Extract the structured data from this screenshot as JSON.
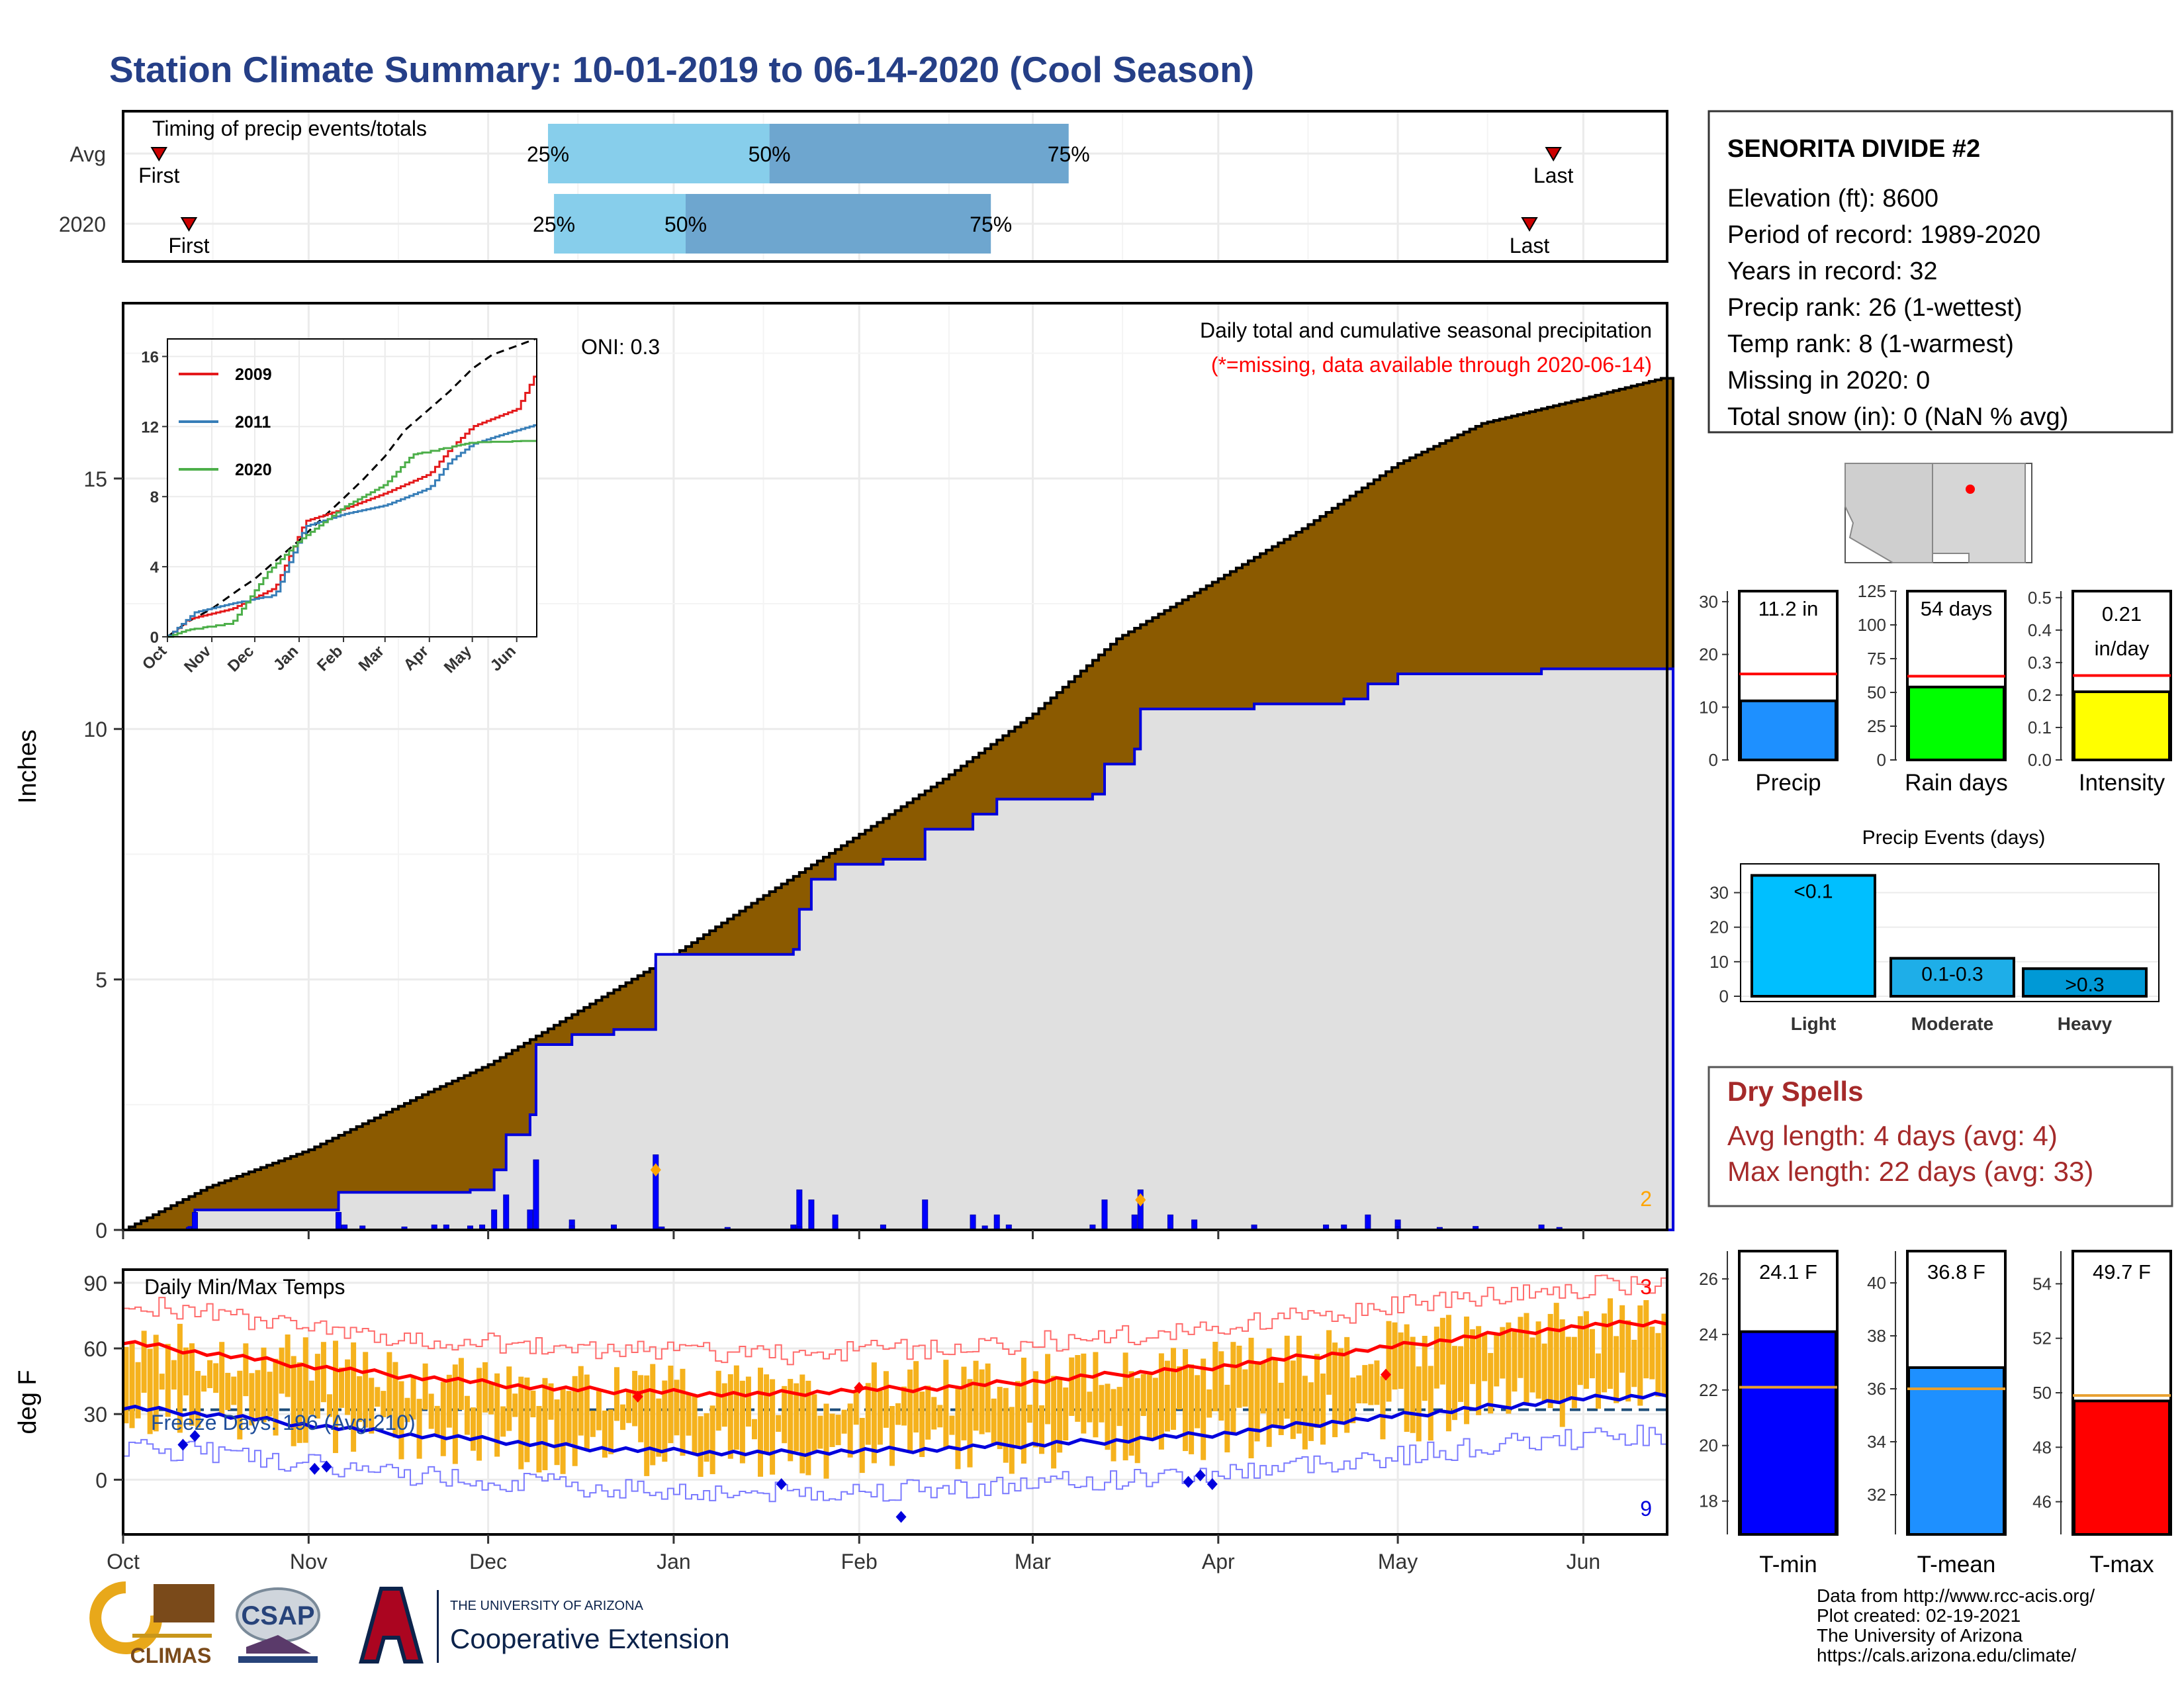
{
  "title": "Station Climate Summary: 10-01-2019 to 06-14-2020 (Cool Season)",
  "colors": {
    "title": "#253f87",
    "brown": "#8b5a00",
    "season_fill": "#e0e0e0",
    "blue_line": "#0000dd",
    "q_light": "#87ceeb",
    "q_dark": "#6ea6cf",
    "temp_bar": "#f5b21d",
    "dry_red": "#a52a2a",
    "red": "#ff0000",
    "orange": "#ffa500"
  },
  "months": [
    "Oct",
    "Nov",
    "Dec",
    "Jan",
    "Feb",
    "Mar",
    "Apr",
    "May",
    "Jun"
  ],
  "timing": {
    "title": "Timing of precip events/totals",
    "rows": [
      {
        "label": "Avg",
        "first": "First",
        "last": "Last",
        "first_date": "2019-10-07",
        "last_date": "2020-05-27",
        "p25": "2019-12-11",
        "p50": "2020-01-17",
        "p75": "2020-03-07",
        "pct25": "25%",
        "pct50": "50%",
        "pct75": "75%"
      },
      {
        "label": "2020",
        "first": "First",
        "last": "Last",
        "first_date": "2019-10-12",
        "last_date": "2020-05-23",
        "p25": "2019-12-12",
        "p50": "2020-01-03",
        "p75": "2020-02-23",
        "pct25": "25%",
        "pct50": "50%",
        "pct75": "75%"
      }
    ]
  },
  "precip": {
    "ylabel": "Inches",
    "subtitle": "Daily total and cumulative seasonal precipitation",
    "missing_note": "(*=missing, data available through 2020-06-14)",
    "oni": "ONI: 0.3",
    "corner_count": "2",
    "yticks": [
      0,
      5,
      10,
      15
    ]
  },
  "inset": {
    "yticks": [
      0,
      4,
      8,
      12,
      16
    ],
    "xticks": [
      "Oct",
      "Nov",
      "Dec",
      "Jan",
      "Feb",
      "Mar",
      "Apr",
      "May",
      "Jun"
    ],
    "legend": [
      {
        "name": "2009",
        "color": "#e41a1c"
      },
      {
        "name": "2011",
        "color": "#377eb8"
      },
      {
        "name": "2020",
        "color": "#4daf4a"
      }
    ]
  },
  "temps": {
    "ylabel": "deg F",
    "title": "Daily Min/Max Temps",
    "freeze_text": "Freeze Days: 196 (Avg:210)",
    "count_hot": "3",
    "count_cold": "9",
    "yticks": [
      0,
      30,
      60,
      90
    ]
  },
  "station": {
    "name": "SENORITA DIVIDE #2",
    "lines": [
      "Elevation (ft): 8600",
      "Period of record: 1989-2020",
      "Years in record: 32",
      "Precip rank: 26 (1-wettest)",
      "Temp rank: 8 (1-warmest)",
      "Missing in 2020: 0",
      "Total snow (in): 0 (NaN % avg)"
    ]
  },
  "summary_bars": [
    {
      "label": "Precip",
      "value": 11.2,
      "avg": 16.3,
      "value_text": "11.2 in",
      "color": "#1e90ff",
      "ymax": 32,
      "yticks": [
        0,
        10,
        20,
        30
      ]
    },
    {
      "label": "Rain days",
      "value": 54,
      "avg": 62,
      "value_text": "54 days",
      "color": "#00ff00",
      "ymax": 125,
      "yticks": [
        0,
        25,
        50,
        75,
        100,
        125
      ]
    },
    {
      "label": "Intensity",
      "value": 0.21,
      "avg": 0.26,
      "value_text": "0.21 in/day",
      "color": "#ffff00",
      "ymax": 0.52,
      "yticks": [
        0.0,
        0.1,
        0.2,
        0.3,
        0.4,
        0.5
      ]
    }
  ],
  "events": {
    "title": "Precip Events (days)",
    "yticks": [
      0,
      10,
      20,
      30
    ],
    "bars": [
      {
        "name": "Light",
        "value": 35,
        "label": "<0.1",
        "color": "#00bfff"
      },
      {
        "name": "Moderate",
        "value": 11,
        "label": "0.1-0.3",
        "color": "#1eaee8"
      },
      {
        "name": "Heavy",
        "value": 8,
        "label": ">0.3",
        "color": "#0099d6"
      }
    ]
  },
  "dry_spells": {
    "title": "Dry Spells",
    "line1": "Avg length: 4 days (avg: 4)",
    "line2": "Max length: 22 days (avg: 33)"
  },
  "temp_bars": [
    {
      "label": "T-min",
      "value": 24.1,
      "avg": 22.1,
      "value_text": "24.1 F",
      "color": "#0000ff",
      "ymin": 16.8,
      "ymax": 27.0,
      "yticks": [
        18,
        20,
        22,
        24,
        26
      ]
    },
    {
      "label": "T-mean",
      "value": 36.8,
      "avg": 36.0,
      "value_text": "36.8 F",
      "color": "#1e90ff",
      "ymin": 30.5,
      "ymax": 41.2,
      "yticks": [
        32,
        34,
        36,
        38,
        40
      ]
    },
    {
      "label": "T-max",
      "value": 49.7,
      "avg": 49.9,
      "value_text": "49.7 F",
      "color": "#ff0000",
      "ymin": 44.8,
      "ymax": 55.2,
      "yticks": [
        46,
        48,
        50,
        52,
        54
      ]
    }
  ],
  "chart_data": [
    {
      "type": "area",
      "title": "Daily total and cumulative seasonal precipitation",
      "ylabel": "Inches",
      "ylim": [
        0,
        18.5
      ],
      "series": [
        {
          "name": "cumulative average",
          "points": [
            [
              "2019-10-01",
              0
            ],
            [
              "2019-10-15",
              0.85
            ],
            [
              "2019-11-01",
              1.6
            ],
            [
              "2019-11-20",
              2.7
            ],
            [
              "2019-12-01",
              3.3
            ],
            [
              "2019-12-15",
              4.3
            ],
            [
              "2020-01-01",
              5.5
            ],
            [
              "2020-01-15",
              6.6
            ],
            [
              "2020-02-01",
              7.9
            ],
            [
              "2020-02-15",
              9.0
            ],
            [
              "2020-03-01",
              10.3
            ],
            [
              "2020-03-15",
              11.8
            ],
            [
              "2020-04-01",
              13.0
            ],
            [
              "2020-04-15",
              14.0
            ],
            [
              "2020-05-01",
              15.3
            ],
            [
              "2020-05-15",
              16.1
            ],
            [
              "2020-06-01",
              16.6
            ],
            [
              "2020-06-14",
              17.0
            ]
          ]
        },
        {
          "name": "cumulative 2020",
          "points": [
            [
              "2019-10-01",
              0
            ],
            [
              "2019-10-12",
              0.05
            ],
            [
              "2019-10-13",
              0.4
            ],
            [
              "2019-11-05",
              0.4
            ],
            [
              "2019-11-06",
              0.75
            ],
            [
              "2019-11-28",
              0.8
            ],
            [
              "2019-12-02",
              1.2
            ],
            [
              "2019-12-04",
              1.9
            ],
            [
              "2019-12-08",
              2.3
            ],
            [
              "2019-12-09",
              3.7
            ],
            [
              "2019-12-15",
              3.9
            ],
            [
              "2019-12-22",
              4.0
            ],
            [
              "2019-12-28",
              4.0
            ],
            [
              "2019-12-29",
              5.5
            ],
            [
              "2020-01-21",
              5.6
            ],
            [
              "2020-01-22",
              6.4
            ],
            [
              "2020-01-24",
              7.0
            ],
            [
              "2020-01-28",
              7.3
            ],
            [
              "2020-02-05",
              7.4
            ],
            [
              "2020-02-11",
              7.4
            ],
            [
              "2020-02-12",
              8.0
            ],
            [
              "2020-02-20",
              8.3
            ],
            [
              "2020-02-24",
              8.6
            ],
            [
              "2020-03-11",
              8.7
            ],
            [
              "2020-03-13",
              9.3
            ],
            [
              "2020-03-18",
              9.6
            ],
            [
              "2020-03-19",
              10.4
            ],
            [
              "2020-04-07",
              10.5
            ],
            [
              "2020-04-22",
              10.6
            ],
            [
              "2020-04-26",
              10.9
            ],
            [
              "2020-05-01",
              11.1
            ],
            [
              "2020-05-24",
              11.1
            ],
            [
              "2020-05-25",
              11.2
            ],
            [
              "2020-06-14",
              11.2
            ]
          ]
        }
      ]
    },
    {
      "type": "line",
      "title": "Daily Min/Max Temps",
      "ylabel": "deg F",
      "ylim": [
        -25,
        96
      ],
      "series": [
        {
          "name": "avg max",
          "points": [
            [
              "2019-10-01",
              63
            ],
            [
              "2019-10-15",
              58
            ],
            [
              "2019-11-01",
              52
            ],
            [
              "2019-11-15",
              48
            ],
            [
              "2019-12-01",
              44
            ],
            [
              "2019-12-15",
              41
            ],
            [
              "2020-01-01",
              40
            ],
            [
              "2020-01-15",
              39
            ],
            [
              "2020-02-01",
              41
            ],
            [
              "2020-02-15",
              42
            ],
            [
              "2020-03-01",
              45
            ],
            [
              "2020-03-15",
              48
            ],
            [
              "2020-04-01",
              52
            ],
            [
              "2020-04-15",
              56
            ],
            [
              "2020-05-01",
              61
            ],
            [
              "2020-05-15",
              66
            ],
            [
              "2020-06-01",
              70
            ],
            [
              "2020-06-14",
              72
            ]
          ]
        },
        {
          "name": "avg min",
          "points": [
            [
              "2019-10-01",
              33
            ],
            [
              "2019-10-15",
              30
            ],
            [
              "2019-11-01",
              25
            ],
            [
              "2019-11-15",
              21
            ],
            [
              "2019-12-01",
              18
            ],
            [
              "2019-12-15",
              15
            ],
            [
              "2020-01-01",
              13
            ],
            [
              "2020-01-15",
              12
            ],
            [
              "2020-02-01",
              13
            ],
            [
              "2020-02-15",
              14
            ],
            [
              "2020-03-01",
              16
            ],
            [
              "2020-03-15",
              18
            ],
            [
              "2020-04-01",
              21
            ],
            [
              "2020-04-15",
              25
            ],
            [
              "2020-05-01",
              29
            ],
            [
              "2020-05-15",
              33
            ],
            [
              "2020-06-01",
              37
            ],
            [
              "2020-06-14",
              39
            ]
          ]
        }
      ]
    },
    {
      "type": "line",
      "title": "",
      "ylim": [
        0,
        17
      ],
      "series": [
        {
          "name": "2009",
          "points": [
            [
              "2019-10-01",
              0
            ],
            [
              "2019-10-15",
              1.0
            ],
            [
              "2019-11-15",
              1.6
            ],
            [
              "2019-12-15",
              2.8
            ],
            [
              "2020-01-05",
              6.6
            ],
            [
              "2020-02-01",
              7.3
            ],
            [
              "2020-03-01",
              8.2
            ],
            [
              "2020-04-01",
              9.3
            ],
            [
              "2020-04-15",
              10.7
            ],
            [
              "2020-05-01",
              12.0
            ],
            [
              "2020-06-01",
              13.0
            ],
            [
              "2020-06-14",
              15.0
            ]
          ]
        },
        {
          "name": "2011",
          "points": [
            [
              "2019-10-01",
              0
            ],
            [
              "2019-10-20",
              1.4
            ],
            [
              "2019-11-15",
              1.9
            ],
            [
              "2019-12-15",
              2.4
            ],
            [
              "2020-01-05",
              6.3
            ],
            [
              "2020-02-01",
              7.0
            ],
            [
              "2020-03-01",
              7.5
            ],
            [
              "2020-04-01",
              8.5
            ],
            [
              "2020-04-15",
              10.0
            ],
            [
              "2020-05-01",
              11.0
            ],
            [
              "2020-05-20",
              11.5
            ],
            [
              "2020-06-14",
              12.1
            ]
          ]
        },
        {
          "name": "2020",
          "points": [
            [
              "2019-10-01",
              0
            ],
            [
              "2019-10-15",
              0.4
            ],
            [
              "2019-11-15",
              0.8
            ],
            [
              "2019-12-10",
              3.7
            ],
            [
              "2020-01-01",
              5.5
            ],
            [
              "2020-02-01",
              7.4
            ],
            [
              "2020-03-01",
              8.7
            ],
            [
              "2020-03-20",
              10.4
            ],
            [
              "2020-05-01",
              11.1
            ],
            [
              "2020-06-14",
              11.2
            ]
          ]
        }
      ]
    }
  ]
}
